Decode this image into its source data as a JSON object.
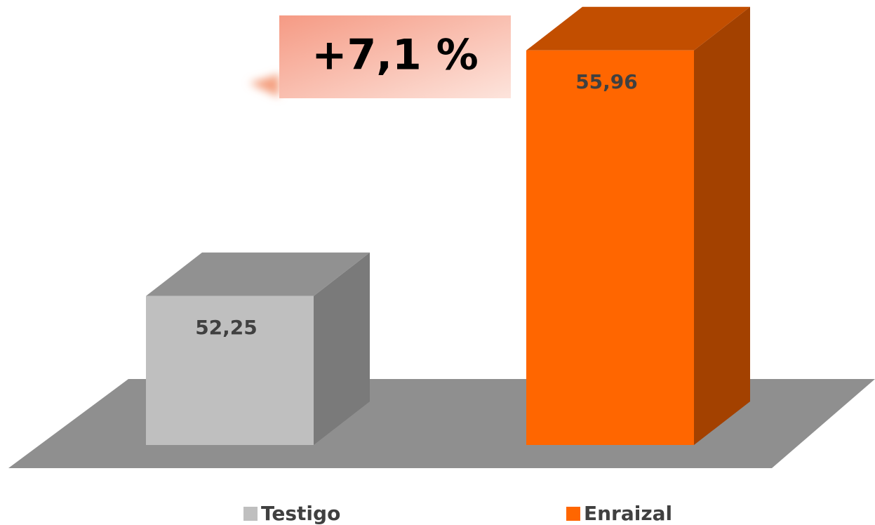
{
  "chart_data": {
    "type": "bar3d",
    "annotation": "+7,1 %",
    "categories": [
      "Testigo",
      "Enraizal"
    ],
    "values": [
      52.25,
      55.96
    ],
    "value_labels": [
      "52,25",
      "55,96"
    ],
    "colors": [
      "#bfbfbf",
      "#ff6600"
    ],
    "ylim": [
      50,
      56
    ],
    "legend": "bottom"
  }
}
